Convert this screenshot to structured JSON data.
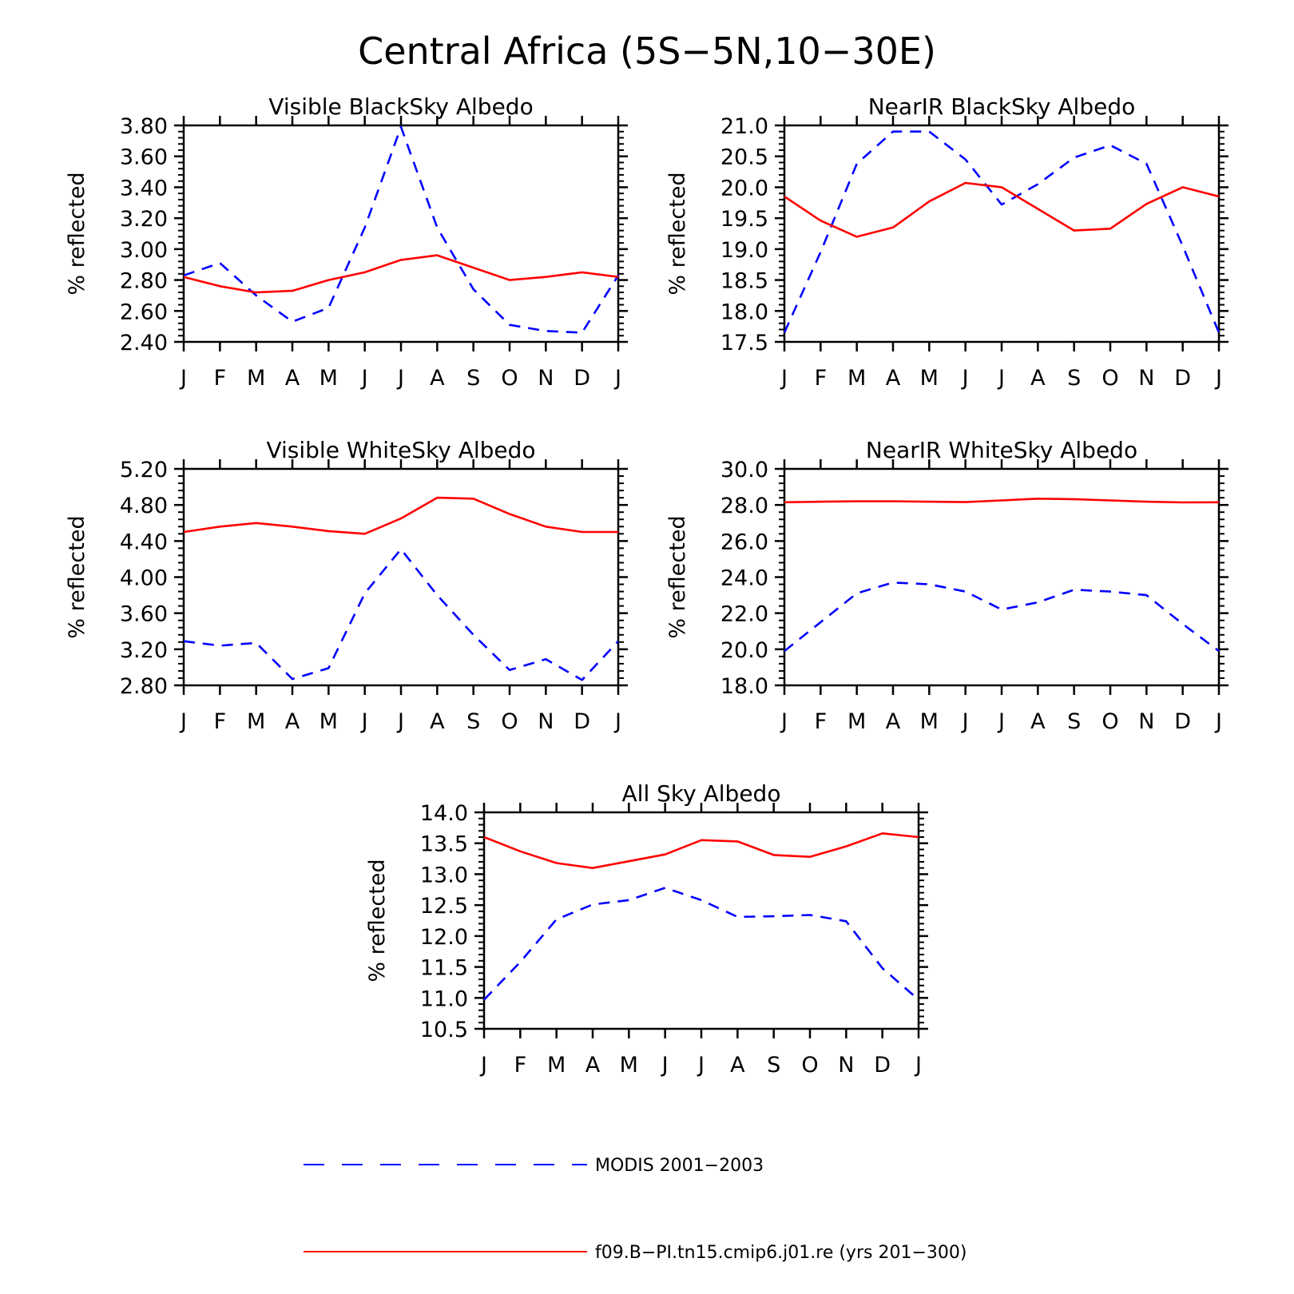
{
  "figure_title": "Central Africa (5S−5N,10−30E)",
  "legend": {
    "modis_label": "MODIS 2001−2003",
    "model_label": "f09.B−PI.tn15.cmip6.j01.re (yrs 201−300)"
  },
  "colors": {
    "modis": "#0000ff",
    "model": "#ff0000",
    "axis": "#000000"
  },
  "chart_data": [
    {
      "type": "line",
      "title": "Visible BlackSky Albedo",
      "ylabel": "% reflected",
      "ylim": [
        2.4,
        3.8
      ],
      "y_ticks": [
        "2.40",
        "2.60",
        "2.80",
        "3.00",
        "3.20",
        "3.40",
        "3.60",
        "3.80"
      ],
      "x": [
        "J",
        "F",
        "M",
        "A",
        "M",
        "J",
        "J",
        "A",
        "S",
        "O",
        "N",
        "D",
        "J"
      ],
      "series": [
        {
          "name": "MODIS 2001−2003",
          "style": "dashed",
          "values": [
            2.83,
            2.91,
            2.7,
            2.53,
            2.62,
            3.14,
            3.79,
            3.14,
            2.74,
            2.51,
            2.47,
            2.46,
            2.83
          ]
        },
        {
          "name": "f09.B−PI.tn15.cmip6.j01.re (yrs 201−300)",
          "style": "solid",
          "values": [
            2.82,
            2.76,
            2.72,
            2.73,
            2.8,
            2.85,
            2.93,
            2.96,
            2.88,
            2.8,
            2.82,
            2.85,
            2.82
          ]
        }
      ]
    },
    {
      "type": "line",
      "title": "NearIR BlackSky Albedo",
      "ylabel": "% reflected",
      "ylim": [
        17.5,
        21.0
      ],
      "y_ticks": [
        "17.5",
        "18.0",
        "18.5",
        "19.0",
        "19.5",
        "20.0",
        "20.5",
        "21.0"
      ],
      "x": [
        "J",
        "F",
        "M",
        "A",
        "M",
        "J",
        "J",
        "A",
        "S",
        "O",
        "N",
        "D",
        "J"
      ],
      "series": [
        {
          "name": "MODIS 2001−2003",
          "style": "dashed",
          "values": [
            17.65,
            18.95,
            20.38,
            20.9,
            20.9,
            20.45,
            19.72,
            20.05,
            20.48,
            20.68,
            20.38,
            19.05,
            17.65
          ]
        },
        {
          "name": "f09.B−PI.tn15.cmip6.j01.re (yrs 201−300)",
          "style": "solid",
          "values": [
            19.85,
            19.46,
            19.2,
            19.35,
            19.77,
            20.07,
            20.0,
            19.65,
            19.3,
            19.33,
            19.73,
            20.0,
            19.85
          ]
        }
      ]
    },
    {
      "type": "line",
      "title": "Visible WhiteSky Albedo",
      "ylabel": "% reflected",
      "ylim": [
        2.8,
        5.2
      ],
      "y_ticks": [
        "2.80",
        "3.20",
        "3.60",
        "4.00",
        "4.40",
        "4.80",
        "5.20"
      ],
      "x": [
        "J",
        "F",
        "M",
        "A",
        "M",
        "J",
        "J",
        "A",
        "S",
        "O",
        "N",
        "D",
        "J"
      ],
      "series": [
        {
          "name": "MODIS 2001−2003",
          "style": "dashed",
          "values": [
            3.29,
            3.24,
            3.27,
            2.87,
            2.99,
            3.82,
            4.31,
            3.8,
            3.36,
            2.97,
            3.09,
            2.86,
            3.29
          ]
        },
        {
          "name": "f09.B−PI.tn15.cmip6.j01.re (yrs 201−300)",
          "style": "solid",
          "values": [
            4.5,
            4.56,
            4.6,
            4.56,
            4.51,
            4.48,
            4.65,
            4.88,
            4.87,
            4.7,
            4.56,
            4.5,
            4.5
          ]
        }
      ]
    },
    {
      "type": "line",
      "title": "NearIR WhiteSky Albedo",
      "ylabel": "% reflected",
      "ylim": [
        18.0,
        30.0
      ],
      "y_ticks": [
        "18.0",
        "20.0",
        "22.0",
        "24.0",
        "26.0",
        "28.0",
        "30.0"
      ],
      "x": [
        "J",
        "F",
        "M",
        "A",
        "M",
        "J",
        "J",
        "A",
        "S",
        "O",
        "N",
        "D",
        "J"
      ],
      "series": [
        {
          "name": "MODIS 2001−2003",
          "style": "dashed",
          "values": [
            19.9,
            21.5,
            23.1,
            23.7,
            23.6,
            23.2,
            22.2,
            22.6,
            23.3,
            23.2,
            23.0,
            21.4,
            19.9
          ]
        },
        {
          "name": "f09.B−PI.tn15.cmip6.j01.re (yrs 201−300)",
          "style": "solid",
          "values": [
            28.15,
            28.18,
            28.2,
            28.2,
            28.18,
            28.16,
            28.25,
            28.35,
            28.32,
            28.25,
            28.18,
            28.14,
            28.15
          ]
        }
      ]
    },
    {
      "type": "line",
      "title": "All Sky Albedo",
      "ylabel": "% reflected",
      "ylim": [
        10.5,
        14.0
      ],
      "y_ticks": [
        "10.5",
        "11.0",
        "11.5",
        "12.0",
        "12.5",
        "13.0",
        "13.5",
        "14.0"
      ],
      "x": [
        "J",
        "F",
        "M",
        "A",
        "M",
        "J",
        "J",
        "A",
        "S",
        "O",
        "N",
        "D",
        "J"
      ],
      "series": [
        {
          "name": "MODIS 2001−2003",
          "style": "dashed",
          "values": [
            10.97,
            11.58,
            12.27,
            12.51,
            12.58,
            12.78,
            12.58,
            12.31,
            12.32,
            12.34,
            12.24,
            11.48,
            10.97
          ]
        },
        {
          "name": "f09.B−PI.tn15.cmip6.j01.re (yrs 201−300)",
          "style": "solid",
          "values": [
            13.6,
            13.37,
            13.18,
            13.1,
            13.21,
            13.32,
            13.55,
            13.53,
            13.31,
            13.28,
            13.45,
            13.66,
            13.6
          ]
        }
      ]
    }
  ]
}
